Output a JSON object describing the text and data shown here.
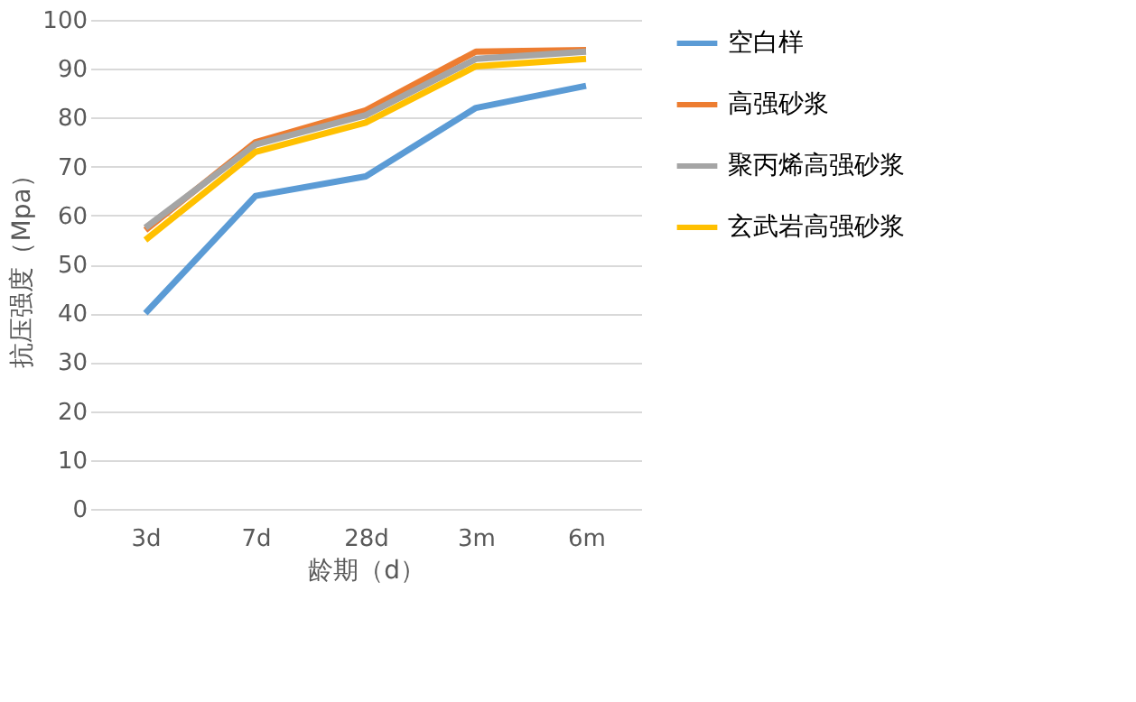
{
  "chart_data": {
    "type": "line",
    "xlabel": "龄期（d）",
    "ylabel": "抗压强度（Mpa）",
    "categories": [
      "3d",
      "7d",
      "28d",
      "3m",
      "6m"
    ],
    "series": [
      {
        "name": "空白样",
        "color": "#5b9bd5",
        "values": [
          40,
          64,
          68,
          82,
          86.5
        ]
      },
      {
        "name": "高强砂浆",
        "color": "#ed7d31",
        "values": [
          57,
          75,
          81.5,
          93.5,
          93.8
        ]
      },
      {
        "name": "聚丙烯高强砂浆",
        "color": "#a5a5a5",
        "values": [
          57.5,
          74.5,
          80.5,
          92,
          93.5
        ]
      },
      {
        "name": "玄武岩高强砂浆",
        "color": "#ffc000",
        "values": [
          55,
          73,
          79,
          90.5,
          92
        ]
      }
    ],
    "ylim": [
      0,
      100
    ],
    "yticks": [
      0,
      10,
      20,
      30,
      40,
      50,
      60,
      70,
      80,
      90,
      100
    ],
    "grid": "y",
    "legend": "right",
    "marker": "none",
    "line_style": "solid"
  }
}
